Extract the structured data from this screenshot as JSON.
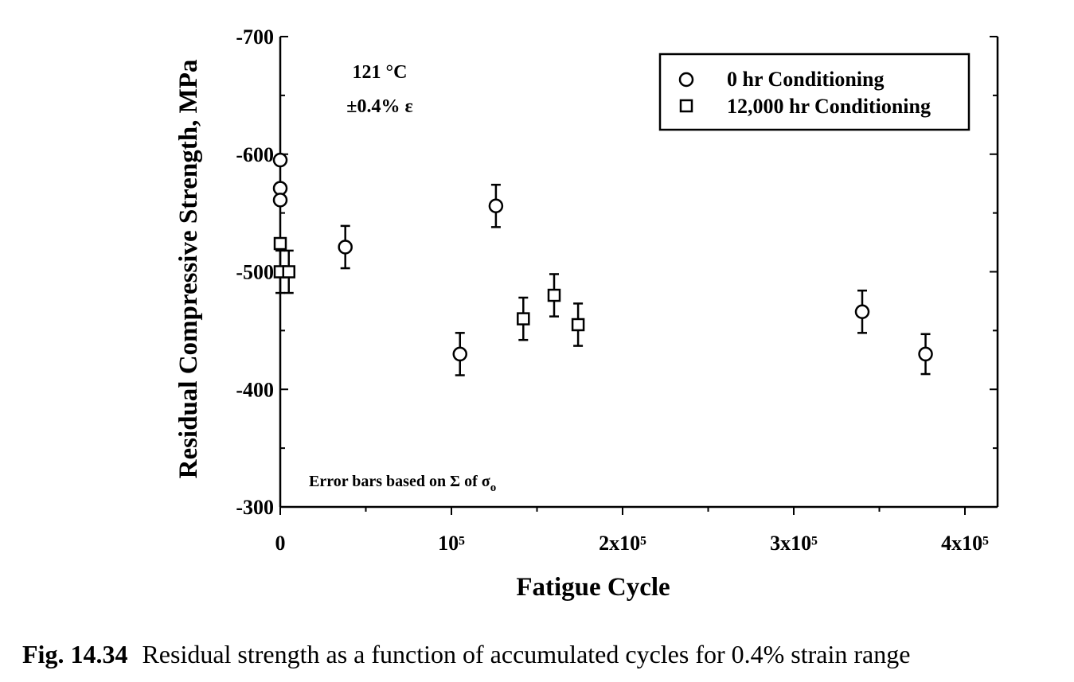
{
  "chart_data": {
    "type": "scatter",
    "xlabel": "Fatigue Cycle",
    "ylabel": "Residual Compressive Strength, MPa",
    "xlim": [
      0,
      420000
    ],
    "ylim": [
      -700,
      -300
    ],
    "x_ticks": [
      {
        "value": 0,
        "label": "0"
      },
      {
        "value": 100000,
        "label": "10⁵"
      },
      {
        "value": 200000,
        "label": "2x10⁵"
      },
      {
        "value": 300000,
        "label": "3x10⁵"
      },
      {
        "value": 400000,
        "label": "4x10⁵"
      }
    ],
    "y_ticks": [
      {
        "value": -700,
        "label": "-700"
      },
      {
        "value": -600,
        "label": "-600"
      },
      {
        "value": -500,
        "label": "-500"
      },
      {
        "value": -400,
        "label": "-400"
      },
      {
        "value": -300,
        "label": "-300"
      }
    ],
    "annotations": {
      "temperature": "121 °C",
      "strain": "±0.4% ε",
      "error_note_prefix": "Error bars based on Σ of σ",
      "error_note_subscript": "o"
    },
    "legend_position": "top-right",
    "series": [
      {
        "name": "0 hr Conditioning",
        "marker": "circle",
        "points": [
          {
            "x": 0,
            "y": -595,
            "err": 0
          },
          {
            "x": 0,
            "y": -571,
            "err": 0
          },
          {
            "x": 0,
            "y": -561,
            "err": 0
          },
          {
            "x": 38000,
            "y": -521,
            "err": 18
          },
          {
            "x": 105000,
            "y": -430,
            "err": 18
          },
          {
            "x": 126000,
            "y": -556,
            "err": 18
          },
          {
            "x": 340000,
            "y": -466,
            "err": 18
          },
          {
            "x": 377000,
            "y": -430,
            "err": 17
          }
        ]
      },
      {
        "name": "12,000 hr Conditioning",
        "marker": "square",
        "points": [
          {
            "x": 0,
            "y": -524,
            "err": 0
          },
          {
            "x": 0,
            "y": -500,
            "err": 18
          },
          {
            "x": 5000,
            "y": -500,
            "err": 18
          },
          {
            "x": 142000,
            "y": -460,
            "err": 18
          },
          {
            "x": 160000,
            "y": -480,
            "err": 18
          },
          {
            "x": 174000,
            "y": -455,
            "err": 18
          }
        ]
      }
    ]
  },
  "caption": {
    "label": "Fig. 14.34",
    "text": "Residual strength as a function of accumulated cycles for 0.4% strain range"
  }
}
